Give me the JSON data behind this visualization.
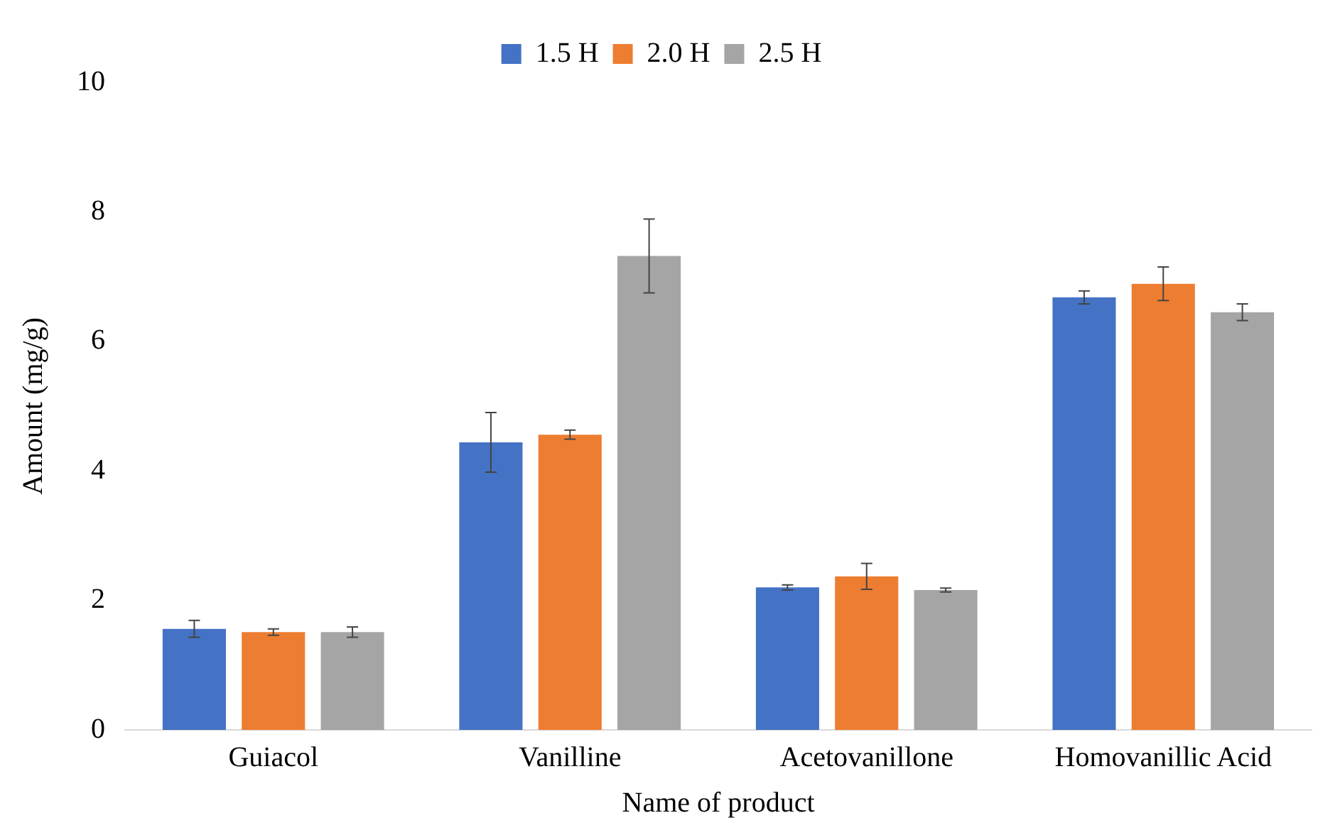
{
  "chart_data": {
    "type": "bar",
    "xlabel": "Name of product",
    "ylabel": "Amount (mg/g)",
    "categories": [
      "Guiacol",
      "Vanilline",
      "Acetovanillone",
      "Homovanillic Acid"
    ],
    "series": [
      {
        "name": "1.5 H",
        "color": "#4472c4",
        "values": [
          1.56,
          4.44,
          2.2,
          6.68
        ],
        "errors": [
          0.13,
          0.46,
          0.04,
          0.1
        ]
      },
      {
        "name": "2.0 H",
        "color": "#ed7d31",
        "values": [
          1.51,
          4.56,
          2.37,
          6.89
        ],
        "errors": [
          0.05,
          0.07,
          0.2,
          0.26
        ]
      },
      {
        "name": "2.5 H",
        "color": "#a5a5a5",
        "values": [
          1.51,
          7.32,
          2.16,
          6.45
        ],
        "errors": [
          0.08,
          0.57,
          0.03,
          0.13
        ]
      }
    ],
    "ylim": [
      0,
      10
    ],
    "yticks": [
      0,
      2,
      4,
      6,
      8,
      10
    ],
    "grid": false,
    "legend": "top"
  }
}
